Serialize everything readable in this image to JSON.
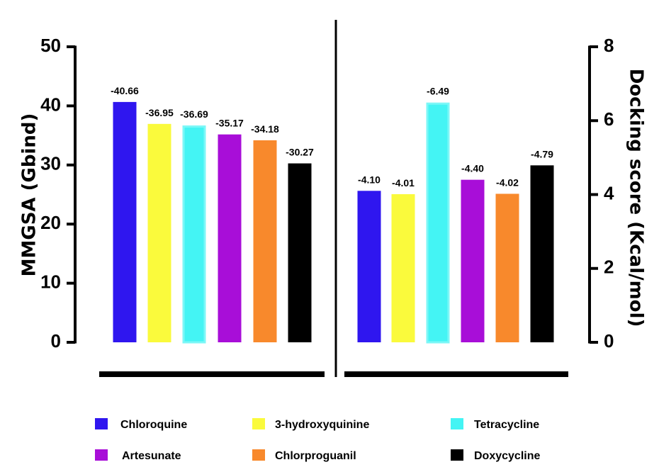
{
  "chart_data": [
    {
      "type": "bar",
      "ylabel": "MMGSA (Gbind)",
      "ylim": [
        0,
        50
      ],
      "yticks": [
        "0",
        "10",
        "20",
        "30",
        "40",
        "50"
      ],
      "categories": [
        "Chloroquine",
        "3-hydroxyquinine",
        "Tetracycline",
        "Artesunate",
        "Chlorproguanil",
        "Doxycycline"
      ],
      "values": [
        40.66,
        36.95,
        36.69,
        35.17,
        34.18,
        30.27
      ],
      "data_labels": [
        "-40.66",
        "-36.95",
        "-36.69",
        "-35.17",
        "-34.18",
        "-30.27"
      ]
    },
    {
      "type": "bar",
      "ylabel": "Docking score (Kcal/mol)",
      "ylim": [
        0,
        8
      ],
      "yticks": [
        "0",
        "2",
        "4",
        "6",
        "8"
      ],
      "categories": [
        "Chloroquine",
        "3-hydroxyquinine",
        "Tetracycline",
        "Artesunate",
        "Chlorproguanil",
        "Doxycycline"
      ],
      "values": [
        4.1,
        4.01,
        6.49,
        4.4,
        4.02,
        4.79
      ],
      "data_labels": [
        "-4.10",
        "-4.01",
        "-6.49",
        "-4.40",
        "-4.02",
        "-4.79"
      ]
    }
  ],
  "colors": {
    "Chloroquine": "#2f16ef",
    "3-hydroxyquinine": "#fafa3c",
    "Tetracycline": "#44f4f4",
    "Artesunate": "#a80ed8",
    "Chlorproguanil": "#f8892c",
    "Doxycycline": "#000000"
  },
  "legend": [
    {
      "label": "Chloroquine",
      "color": "#2f16ef"
    },
    {
      "label": "3-hydroxyquinine",
      "color": "#fafa3c"
    },
    {
      "label": "Tetracycline",
      "color": "#44f4f4"
    },
    {
      "label": "Artesunate",
      "color": "#a80ed8"
    },
    {
      "label": "Chlorproguanil",
      "color": "#f8892c"
    },
    {
      "label": "Doxycycline",
      "color": "#000000"
    }
  ]
}
